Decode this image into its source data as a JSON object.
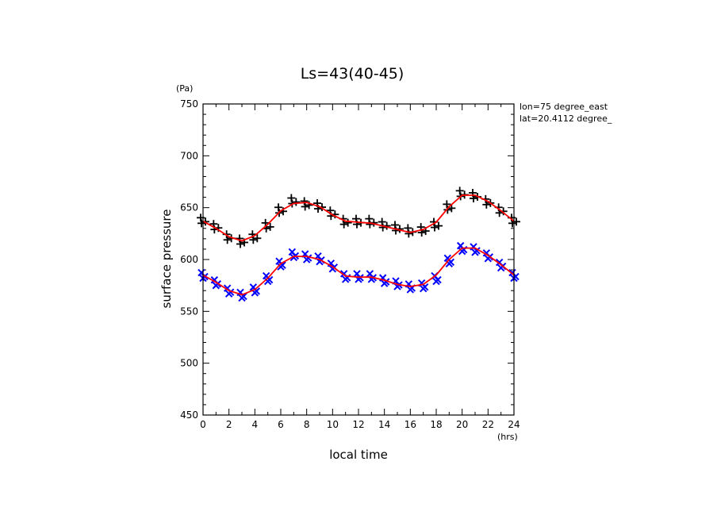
{
  "chart_data": {
    "type": "scatter",
    "title": "Ls=43(40-45)",
    "xlabel": "local time",
    "ylabel": "surface pressure",
    "x_unit": "(hrs)",
    "y_unit": "(Pa)",
    "xlim": [
      0,
      24
    ],
    "ylim": [
      450,
      750
    ],
    "x_ticks": [
      0,
      2,
      4,
      6,
      8,
      10,
      12,
      14,
      16,
      18,
      20,
      22,
      24
    ],
    "y_ticks": [
      450,
      500,
      550,
      600,
      650,
      700,
      750
    ],
    "grid": false,
    "annotations": [
      "lon=75 degree_east",
      "lat=20.4112 degree_"
    ],
    "series": [
      {
        "marker": "plus",
        "color": "#000000",
        "x": [
          0,
          1,
          2,
          3,
          4,
          5,
          6,
          7,
          8,
          9,
          10,
          11,
          12,
          13,
          14,
          15,
          16,
          17,
          18,
          19,
          20,
          21,
          22,
          23,
          24
        ],
        "values": [
          638,
          632,
          622,
          618,
          622,
          633,
          648,
          657,
          654,
          652,
          645,
          637,
          637,
          637,
          634,
          631,
          628,
          629,
          634,
          651,
          664,
          662,
          656,
          648,
          638
        ]
      },
      {
        "marker": "x",
        "color": "#0000ff",
        "x": [
          0,
          1,
          2,
          3,
          4,
          5,
          6,
          7,
          8,
          9,
          10,
          11,
          12,
          13,
          14,
          15,
          16,
          17,
          18,
          19,
          20,
          21,
          22,
          23,
          24
        ],
        "values": [
          585,
          578,
          570,
          566,
          571,
          582,
          596,
          605,
          603,
          601,
          594,
          584,
          584,
          584,
          580,
          577,
          574,
          575,
          582,
          599,
          611,
          610,
          604,
          595,
          585
        ]
      },
      {
        "type": "line",
        "color": "#ff0000",
        "x": [
          0,
          1,
          2,
          3,
          4,
          5,
          6,
          7,
          8,
          9,
          10,
          11,
          12,
          13,
          14,
          15,
          16,
          17,
          18,
          19,
          20,
          21,
          22,
          23,
          24
        ],
        "values": [
          637,
          630,
          622,
          618,
          623,
          634,
          647,
          654,
          655,
          651,
          643,
          637,
          636,
          635,
          632,
          629,
          626,
          629,
          636,
          651,
          662,
          662,
          656,
          647,
          637
        ]
      },
      {
        "type": "line",
        "color": "#ff0000",
        "x": [
          0,
          1,
          2,
          3,
          4,
          5,
          6,
          7,
          8,
          9,
          10,
          11,
          12,
          13,
          14,
          15,
          16,
          17,
          18,
          19,
          20,
          21,
          22,
          23,
          24
        ],
        "values": [
          585,
          578,
          570,
          566,
          571,
          582,
          596,
          603,
          603,
          600,
          593,
          584,
          583,
          583,
          580,
          576,
          574,
          576,
          585,
          600,
          611,
          611,
          604,
          595,
          585
        ]
      }
    ]
  }
}
